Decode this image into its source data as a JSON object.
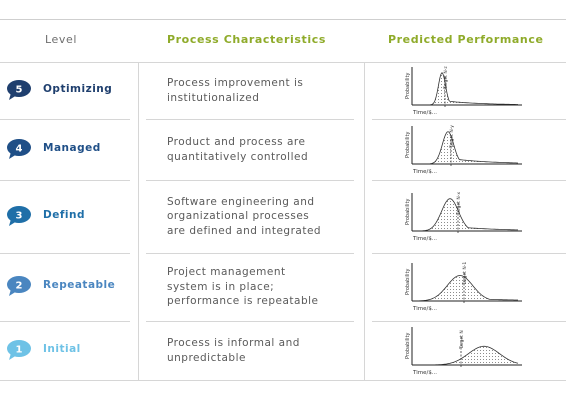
{
  "header": {
    "level": "Level",
    "process": "Process Characteristics",
    "performance": "Predicted Performance"
  },
  "colors": {
    "header_green": "#8fab2a"
  },
  "chart_labels": {
    "y_axis": "Probability",
    "x_axis": "Time/$..."
  },
  "levels": [
    {
      "number": "5",
      "name": "Optimizing",
      "color": "#1f3f6e",
      "description": [
        "Process improvement is",
        "institutionalized"
      ],
      "target_label": "Target N-z"
    },
    {
      "number": "4",
      "name": "Managed",
      "color": "#1f4f87",
      "description": [
        "Product and process are",
        "quantitatively controlled"
      ],
      "target_label": "Target N-y"
    },
    {
      "number": "3",
      "name": "Defind",
      "color": "#1f6fa8",
      "description": [
        "Software engineering and",
        "organizational processes",
        "are defined and integrated"
      ],
      "target_label": "Target N-x"
    },
    {
      "number": "2",
      "name": "Repeatable",
      "color": "#4a86c0",
      "description": [
        "Project management",
        "system is in place;",
        "performance is repeatable"
      ],
      "target_label": "Target N-1"
    },
    {
      "number": "1",
      "name": "Initial",
      "color": "#6ec2e6",
      "description": [
        "Process is informal and",
        "unpredictable"
      ],
      "target_label": "Target N"
    }
  ]
}
